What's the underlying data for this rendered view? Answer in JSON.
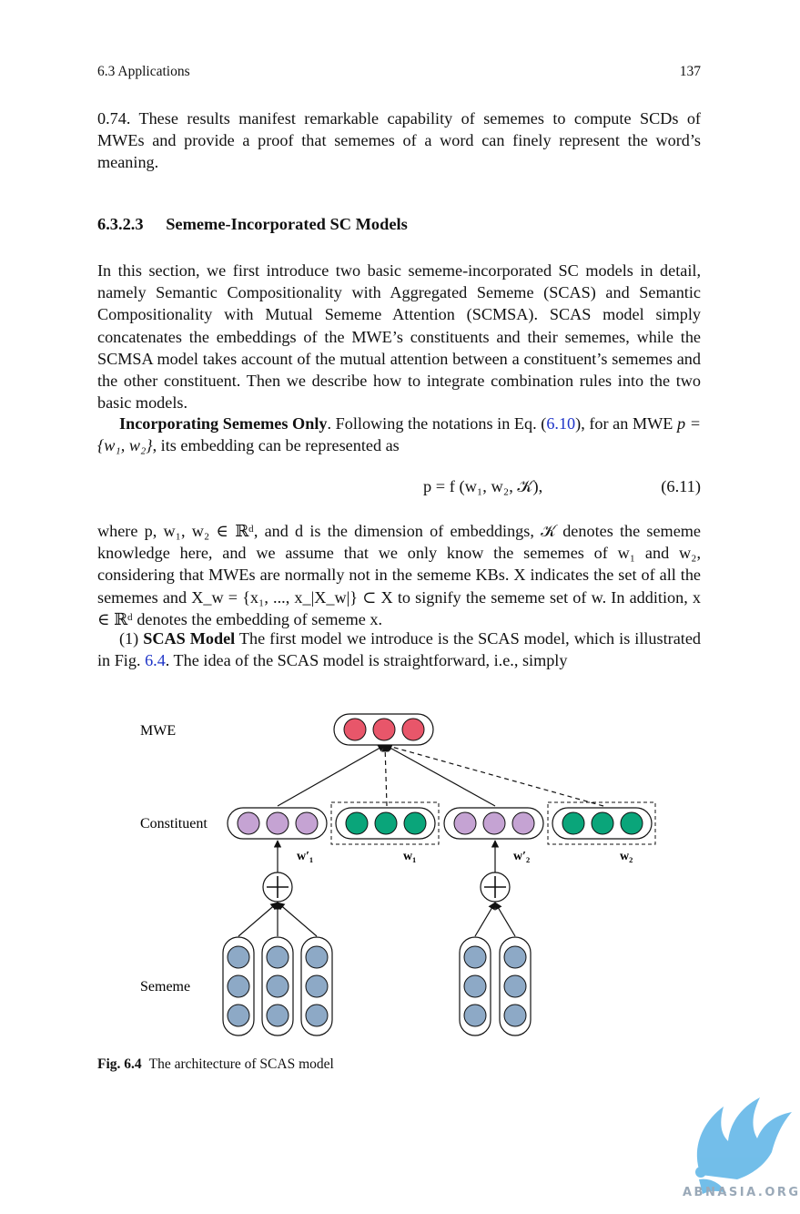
{
  "header": {
    "section": "6.3   Applications",
    "page_number": "137"
  },
  "intro_paragraph": "0.74. These results manifest remarkable capability of sememes to compute SCDs of MWEs and provide a proof that sememes of a word can finely represent the word’s meaning.",
  "heading": {
    "number": "6.3.2.3",
    "title": "Sememe-Incorporated SC Models"
  },
  "section_paragraph": "In this section, we first introduce two basic sememe-incorporated SC models in detail, namely Semantic Compositionality with Aggregated Sememe (SCAS) and Semantic Compositionality with Mutual Sememe Attention (SCMSA). SCAS model simply concatenates the embeddings of the MWE’s constituents and their sememes, while the SCMSA model takes account of the mutual attention between a constituent’s sememes and the other constituent. Then we describe how to integrate combination rules into the two basic models.",
  "incorporating": {
    "run_in": "Incorporating Sememes Only",
    "text_before_ref": ". Following the notations in Eq. (",
    "ref": "6.10",
    "text_after_ref": "), for an MWE ",
    "math": "p = {w₁, w₂}",
    "text_end": ", its embedding can be represented as"
  },
  "equation": {
    "body": "p = f (w₁, w₂, 𝒦),",
    "number": "(6.11)"
  },
  "where_paragraph": "where p, w₁, w₂ ∈ ℝᵈ, and d is the dimension of embeddings, 𝒦 denotes the sememe knowledge here, and we assume that we only know the sememes of w₁ and w₂, considering that MWEs are normally not in the sememe KBs. X indicates the set of all the sememes and X_w = {x₁, ..., x_|X_w|} ⊂ X to signify the sememe set of w. In addition, x ∈ ℝᵈ denotes the embedding of sememe x.",
  "scas": {
    "prefix": "(1) ",
    "run_in": "SCAS Model",
    "text_before_ref": " The first model we introduce is the SCAS model, which is illustrated in Fig. ",
    "ref": "6.4",
    "text_after_ref": ". The idea of the SCAS model is straightforward, i.e., simply"
  },
  "figure": {
    "labels": {
      "mwe": "MWE",
      "constituent": "Constituent",
      "sememe": "Sememe"
    },
    "vector_labels": {
      "w1_prime": "w′₁",
      "w1": "w₁",
      "w2_prime": "w′₂",
      "w2": "w₂"
    },
    "colors": {
      "mwe": "#e8566a",
      "constituent_prime": "#c5a3d3",
      "constituent": "#0aa57a",
      "sememe": "#8da9c6"
    }
  },
  "caption": {
    "label": "Fig. 6.4",
    "text": "The architecture of SCAS model"
  },
  "watermark": {
    "text": "ABNASIA.ORG"
  }
}
